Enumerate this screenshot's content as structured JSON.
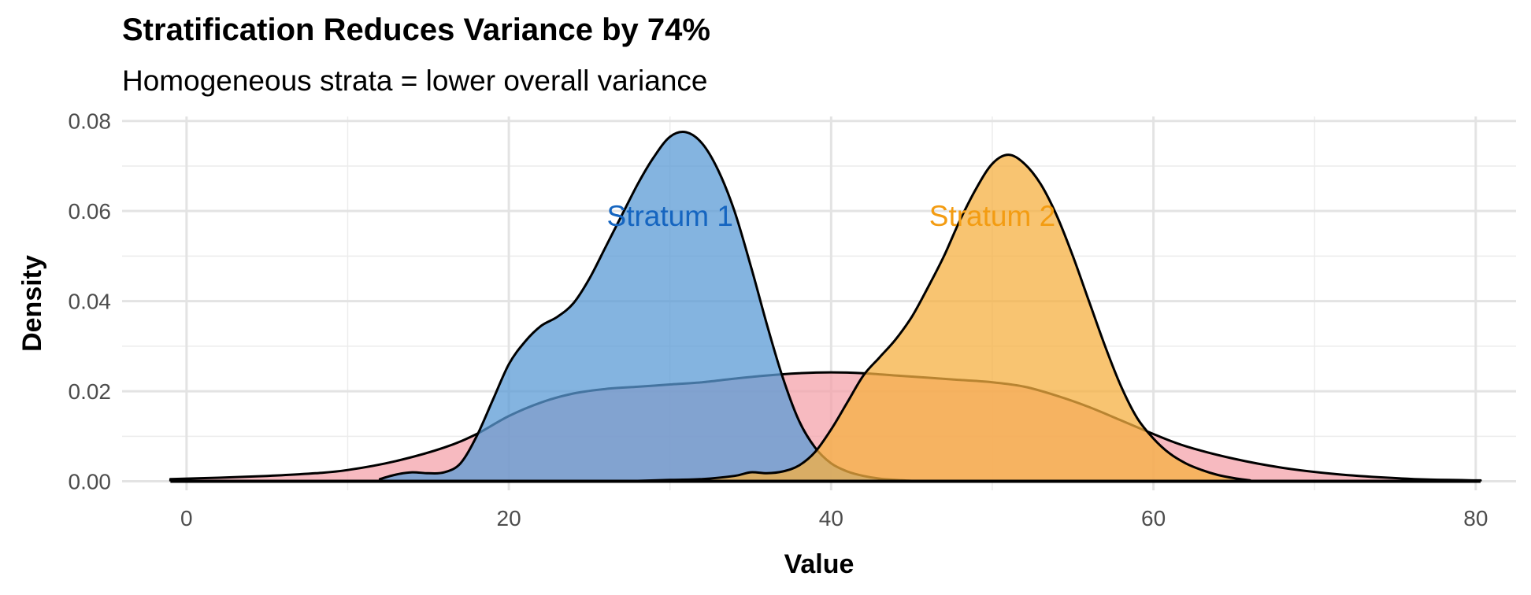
{
  "chart_data": {
    "type": "area",
    "title": "Stratification Reduces Variance by 74%",
    "subtitle": "Homogeneous strata = lower overall variance",
    "xlabel": "Value",
    "ylabel": "Density",
    "xlim": [
      -4,
      82.5
    ],
    "ylim": [
      -0.002,
      0.081
    ],
    "xticks": [
      0,
      20,
      40,
      60,
      80
    ],
    "yticks": [
      0.0,
      0.02,
      0.04,
      0.06,
      0.08
    ],
    "ytick_labels": [
      "0.00",
      "0.02",
      "0.04",
      "0.06",
      "0.08"
    ],
    "grid": true,
    "legend": "none",
    "series": [
      {
        "name": "",
        "color": "#f4a3ab",
        "x": [
          -1,
          2,
          5,
          8,
          10,
          13,
          16,
          18,
          20,
          22,
          24,
          26,
          28,
          30,
          32,
          34,
          36,
          38,
          40,
          42,
          44,
          46,
          48,
          50,
          52,
          54,
          56,
          58,
          60,
          62,
          65,
          68,
          71,
          74,
          77,
          80.3
        ],
        "y": [
          0.0005,
          0.0008,
          0.0012,
          0.0018,
          0.0025,
          0.0045,
          0.0075,
          0.0105,
          0.0145,
          0.0175,
          0.0195,
          0.0205,
          0.021,
          0.0215,
          0.022,
          0.0228,
          0.0235,
          0.024,
          0.0242,
          0.024,
          0.0235,
          0.023,
          0.0225,
          0.022,
          0.021,
          0.019,
          0.0165,
          0.0135,
          0.0105,
          0.0078,
          0.005,
          0.003,
          0.0017,
          0.0009,
          0.0004,
          0.0002
        ]
      },
      {
        "name": "",
        "color": "#5b9bd5",
        "x": [
          12,
          13,
          14,
          15,
          16,
          17,
          18,
          19,
          20,
          21,
          22,
          23,
          24,
          25,
          26,
          27,
          28,
          29,
          30,
          31,
          32,
          33,
          34,
          35,
          36,
          37,
          38,
          39,
          40,
          41,
          42,
          43,
          44,
          45
        ],
        "y": [
          0.0005,
          0.0015,
          0.002,
          0.0018,
          0.002,
          0.004,
          0.01,
          0.018,
          0.026,
          0.031,
          0.0345,
          0.0365,
          0.0395,
          0.045,
          0.052,
          0.059,
          0.066,
          0.072,
          0.0765,
          0.0775,
          0.075,
          0.069,
          0.06,
          0.048,
          0.035,
          0.023,
          0.0135,
          0.0075,
          0.004,
          0.0022,
          0.0012,
          0.0006,
          0.0003,
          0.0001
        ]
      },
      {
        "name": "",
        "color": "#f5b041",
        "x": [
          26,
          28,
          30,
          32,
          34,
          35,
          36,
          37,
          38,
          39,
          40,
          41,
          42,
          43,
          44,
          45,
          46,
          47,
          48,
          49,
          50,
          51,
          52,
          53,
          54,
          55,
          56,
          57,
          58,
          59,
          60,
          61,
          62,
          63,
          64,
          65,
          66
        ],
        "y": [
          0.0,
          0.0001,
          0.0003,
          0.0005,
          0.0012,
          0.002,
          0.0018,
          0.0022,
          0.0035,
          0.0065,
          0.0115,
          0.0175,
          0.0235,
          0.0275,
          0.0315,
          0.0365,
          0.043,
          0.05,
          0.058,
          0.065,
          0.0705,
          0.0725,
          0.0705,
          0.066,
          0.059,
          0.05,
          0.04,
          0.03,
          0.021,
          0.014,
          0.0095,
          0.0062,
          0.004,
          0.0025,
          0.0014,
          0.0007,
          0.0002
        ]
      }
    ],
    "annotations": [
      {
        "text": "Stratum 1",
        "x": 30,
        "y": 0.059,
        "color": "#1565c0"
      },
      {
        "text": "Stratum 2",
        "x": 50,
        "y": 0.059,
        "color": "#f39c12"
      }
    ]
  }
}
